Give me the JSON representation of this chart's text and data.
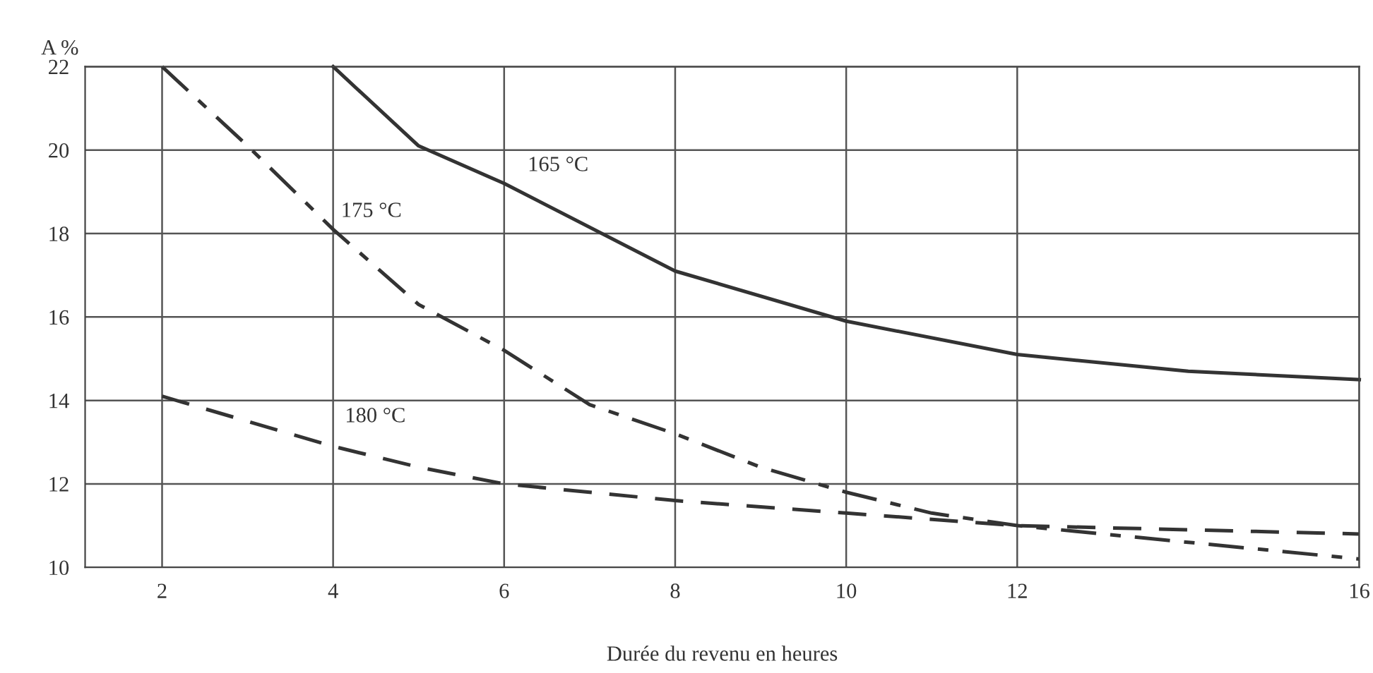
{
  "chart_data": {
    "type": "line",
    "xlabel": "Durée du revenu en heures",
    "ylabel": "A %",
    "xlim": [
      1.1,
      16
    ],
    "xticks": [
      2,
      4,
      6,
      8,
      10,
      12,
      16
    ],
    "ylim": [
      10,
      22
    ],
    "yticks": [
      10,
      12,
      14,
      16,
      18,
      20,
      22
    ],
    "grid": true,
    "marker": "none",
    "series": [
      {
        "name": "165 °C",
        "color": "#333333",
        "line_style": "solid",
        "x": [
          4,
          5,
          6,
          8,
          10,
          12,
          14,
          16
        ],
        "values": [
          22,
          20.1,
          19.2,
          17.1,
          15.9,
          15.1,
          14.7,
          14.5
        ]
      },
      {
        "name": "175 °C",
        "color": "#333333",
        "line_style": "dashdot",
        "x": [
          2,
          3,
          4,
          5,
          6,
          7,
          8,
          9,
          10,
          11,
          12,
          14,
          16
        ],
        "values": [
          22,
          20.1,
          18.1,
          16.3,
          15.2,
          13.9,
          13.2,
          12.4,
          11.8,
          11.3,
          11.0,
          10.6,
          10.2
        ]
      },
      {
        "name": "180 °C",
        "color": "#333333",
        "line_style": "dashed",
        "x": [
          2,
          3,
          4,
          5,
          6,
          7,
          8,
          10,
          12,
          14,
          16
        ],
        "values": [
          14.1,
          13.5,
          12.9,
          12.4,
          12.0,
          11.8,
          11.6,
          11.3,
          11.0,
          10.9,
          10.8
        ]
      }
    ]
  }
}
